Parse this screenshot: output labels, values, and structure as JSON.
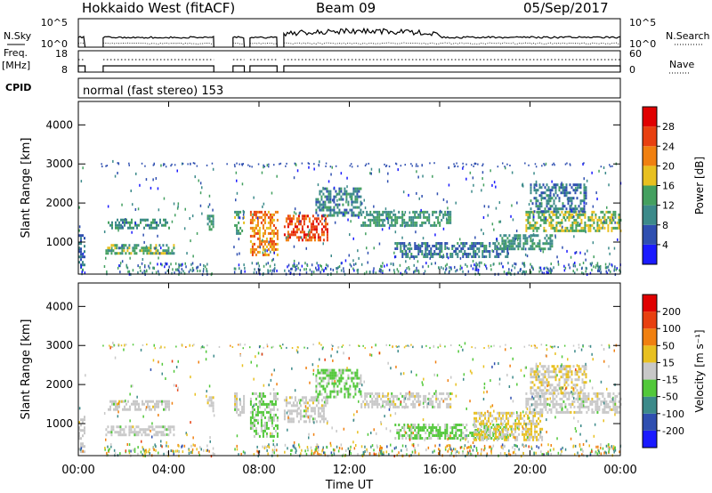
{
  "header": {
    "station": "Hokkaido West (fitACF)",
    "beam": "Beam 09",
    "date": "05/Sep/2017"
  },
  "status_panels": {
    "nsky_label": "N.Sky",
    "nsearch_label": "N.Search",
    "noise_ticks": [
      "10^5",
      "10^0"
    ],
    "freq_label_line1": "Freq.",
    "freq_label_line2": "[MHz]",
    "freq_ticks": [
      "18",
      "8"
    ],
    "nave_label": "Nave",
    "nave_ticks": [
      "60",
      "0"
    ],
    "cpid_label": "CPID",
    "cpid_value": "normal (fast stereo) 153",
    "active_intervals_h": [
      [
        0.0,
        0.3
      ],
      [
        1.1,
        6.0
      ],
      [
        6.85,
        7.35
      ],
      [
        7.6,
        8.8
      ],
      [
        9.1,
        24.0
      ]
    ]
  },
  "chart_data": [
    {
      "type": "heatmap",
      "title": "",
      "xlabel": "Time UT",
      "ylabel": "Slant Range [km]",
      "x_tick_labels": [
        "00:00",
        "04:00",
        "08:00",
        "12:00",
        "16:00",
        "20:00",
        "00:00"
      ],
      "xlim_hours": [
        0,
        24
      ],
      "y_tick_labels": [
        "1000",
        "2000",
        "3000",
        "4000"
      ],
      "ylim": [
        180,
        4600
      ],
      "colorbar": {
        "label": "Power [dB]",
        "tick_labels": [
          "4",
          "8",
          "12",
          "16",
          "20",
          "24",
          "28"
        ],
        "range": [
          0,
          32
        ],
        "colors": [
          "#1a1aff",
          "#2f4fb0",
          "#3c8a8a",
          "#44a060",
          "#e8c020",
          "#f08010",
          "#e84010",
          "#e00000"
        ]
      },
      "echo_regions": [
        {
          "t": [
            0.0,
            0.3
          ],
          "range_km": [
            300,
            1200
          ],
          "value": 8
        },
        {
          "t": [
            1.2,
            4.2
          ],
          "range_km": [
            700,
            950
          ],
          "value": 14
        },
        {
          "t": [
            1.3,
            4.0
          ],
          "range_km": [
            1350,
            1600
          ],
          "value": 11
        },
        {
          "t": [
            5.7,
            6.0
          ],
          "range_km": [
            1300,
            1700
          ],
          "value": 12
        },
        {
          "t": [
            6.9,
            7.3
          ],
          "range_km": [
            1200,
            1800
          ],
          "value": 13
        },
        {
          "t": [
            7.6,
            8.8
          ],
          "range_km": [
            700,
            1800
          ],
          "value": 22
        },
        {
          "t": [
            9.1,
            11.0
          ],
          "range_km": [
            1050,
            1700
          ],
          "value": 26
        },
        {
          "t": [
            10.5,
            12.5
          ],
          "range_km": [
            1700,
            2400
          ],
          "value": 10
        },
        {
          "t": [
            12.5,
            16.5
          ],
          "range_km": [
            1400,
            1800
          ],
          "value": 12
        },
        {
          "t": [
            14.0,
            19.0
          ],
          "range_km": [
            600,
            1000
          ],
          "value": 9
        },
        {
          "t": [
            18.5,
            21.0
          ],
          "range_km": [
            800,
            1200
          ],
          "value": 12
        },
        {
          "t": [
            19.8,
            24.0
          ],
          "range_km": [
            1300,
            1800
          ],
          "value": 16
        },
        {
          "t": [
            20.0,
            22.5
          ],
          "range_km": [
            1800,
            2500
          ],
          "value": 9
        }
      ]
    },
    {
      "type": "heatmap",
      "title": "",
      "xlabel": "Time UT",
      "ylabel": "Slant Range [km]",
      "x_tick_labels": [
        "00:00",
        "04:00",
        "08:00",
        "12:00",
        "16:00",
        "20:00",
        "00:00"
      ],
      "xlim_hours": [
        0,
        24
      ],
      "y_tick_labels": [
        "1000",
        "2000",
        "3000",
        "4000"
      ],
      "ylim": [
        180,
        4600
      ],
      "colorbar": {
        "label": "Velocity [m s⁻¹]",
        "tick_labels": [
          "200",
          "100",
          "50",
          "15",
          "-15",
          "-50",
          "-100",
          "-200"
        ],
        "range": [
          -250,
          250
        ],
        "colors": [
          "#1a1aff",
          "#2f4fb0",
          "#3c8a8a",
          "#52c83a",
          "#c8c8c8",
          "#e8c020",
          "#f08010",
          "#e84010",
          "#e00000"
        ]
      },
      "echo_regions": [
        {
          "t": [
            0.0,
            0.3
          ],
          "range_km": [
            300,
            1200
          ],
          "value": 0
        },
        {
          "t": [
            1.2,
            4.2
          ],
          "range_km": [
            700,
            950
          ],
          "value": 0
        },
        {
          "t": [
            1.3,
            4.0
          ],
          "range_km": [
            1350,
            1600
          ],
          "value": 0
        },
        {
          "t": [
            5.7,
            6.0
          ],
          "range_km": [
            1300,
            1700
          ],
          "value": 0
        },
        {
          "t": [
            6.9,
            7.3
          ],
          "range_km": [
            1200,
            1800
          ],
          "value": 0
        },
        {
          "t": [
            7.6,
            8.8
          ],
          "range_km": [
            700,
            1800
          ],
          "value": -30
        },
        {
          "t": [
            9.1,
            11.0
          ],
          "range_km": [
            1050,
            1700
          ],
          "value": 0
        },
        {
          "t": [
            10.5,
            12.5
          ],
          "range_km": [
            1700,
            2400
          ],
          "value": -40
        },
        {
          "t": [
            12.5,
            16.5
          ],
          "range_km": [
            1400,
            1800
          ],
          "value": 0
        },
        {
          "t": [
            14.0,
            19.0
          ],
          "range_km": [
            600,
            1000
          ],
          "value": -40
        },
        {
          "t": [
            17.5,
            20.5
          ],
          "range_km": [
            600,
            1300
          ],
          "value": 30
        },
        {
          "t": [
            19.8,
            24.0
          ],
          "range_km": [
            1300,
            1800
          ],
          "value": 0
        },
        {
          "t": [
            20.0,
            22.5
          ],
          "range_km": [
            1800,
            2500
          ],
          "value": 20
        }
      ]
    }
  ]
}
